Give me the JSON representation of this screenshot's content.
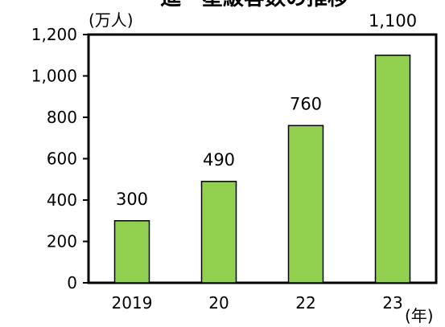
{
  "chart_data": {
    "type": "bar",
    "title_visible_fragment": "進一星級客数の推移",
    "ylabel": "(万人)",
    "xlabel": "(年)",
    "categories": [
      "2019",
      "20",
      "22",
      "23"
    ],
    "values": [
      300,
      490,
      760,
      1100
    ],
    "data_labels": [
      "300",
      "490",
      "760",
      "1,100"
    ],
    "yticks": [
      0,
      200,
      400,
      600,
      800,
      1000,
      1200
    ],
    "ytick_labels": [
      "0",
      "200",
      "400",
      "600",
      "800",
      "1,000",
      "1,200"
    ],
    "ylim": [
      0,
      1200
    ],
    "grid": false,
    "bar_color": "#92d050",
    "bar_edge_color": "#000000"
  }
}
